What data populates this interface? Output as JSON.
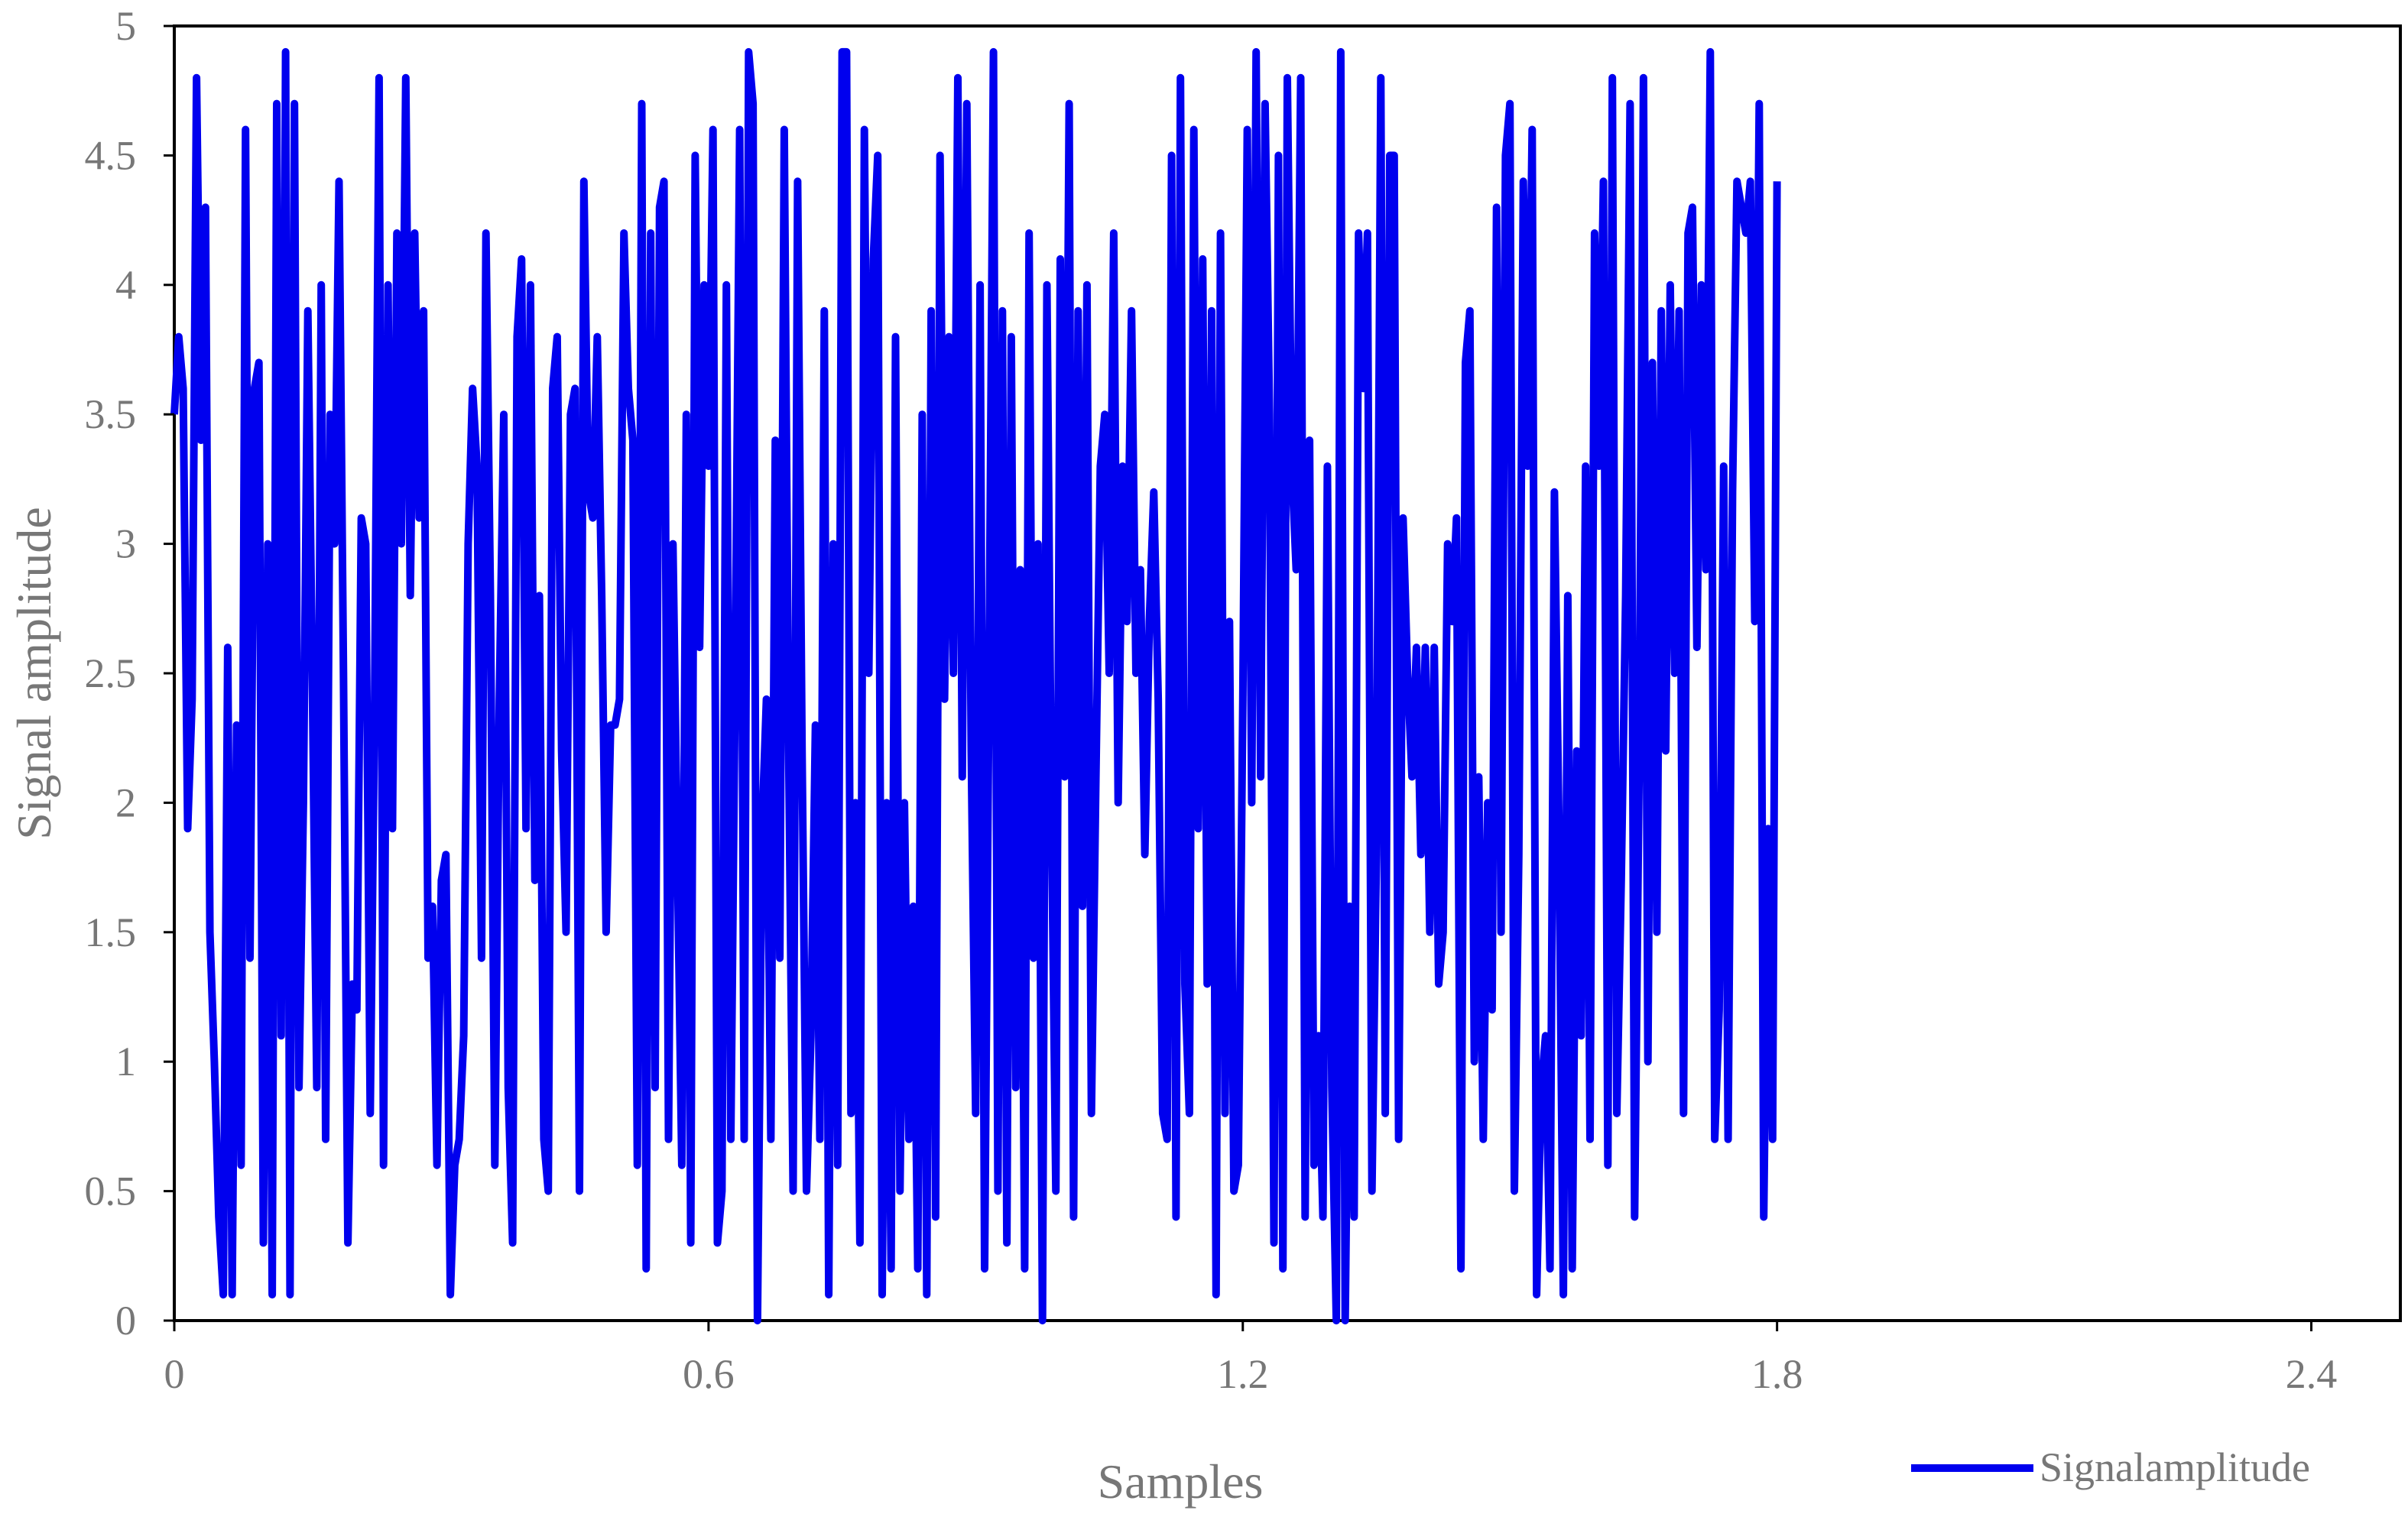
{
  "chart_data": {
    "type": "line",
    "xlabel": "Samples",
    "ylabel": "Signal amplitude",
    "xlim": [
      0,
      2.5
    ],
    "ylim": [
      0,
      5
    ],
    "xticks": [
      "0",
      "0.6",
      "1.2",
      "1.8",
      "2.4"
    ],
    "xtick_values": [
      0,
      0.6,
      1.2,
      1.8,
      2.4
    ],
    "yticks": [
      "0",
      "0.5",
      "1",
      "1.5",
      "2",
      "2.5",
      "3",
      "3.5",
      "4",
      "4.5",
      "5"
    ],
    "ytick_values": [
      0,
      0.5,
      1,
      1.5,
      2,
      2.5,
      3,
      3.5,
      4,
      4.5,
      5
    ],
    "grid": false,
    "legend_position": "bottom-right",
    "series": [
      {
        "name": "Signalamplitude",
        "color": "#0000ee",
        "x_start": 0,
        "x_step": 0.005,
        "values": [
          3.5,
          3.8,
          3.6,
          1.9,
          2.4,
          4.8,
          3.4,
          4.3,
          1.5,
          1.0,
          0.4,
          0.1,
          2.6,
          0.1,
          2.3,
          0.6,
          4.6,
          1.4,
          3.6,
          3.7,
          0.3,
          3.0,
          0.1,
          4.7,
          1.1,
          4.9,
          0.1,
          4.7,
          0.9,
          2.0,
          3.9,
          2.5,
          0.9,
          4.0,
          0.7,
          3.5,
          3.0,
          4.4,
          2.5,
          0.3,
          1.3,
          1.2,
          3.1,
          3.0,
          0.8,
          2.4,
          4.8,
          0.6,
          4.0,
          1.9,
          4.2,
          3.0,
          4.8,
          2.8,
          4.2,
          3.1,
          3.9,
          1.4,
          1.6,
          0.6,
          1.7,
          1.8,
          0.1,
          0.6,
          0.7,
          1.1,
          3.0,
          3.6,
          3.3,
          1.4,
          4.2,
          2.8,
          0.6,
          2.4,
          3.5,
          0.9,
          0.3,
          3.8,
          4.1,
          1.9,
          4.0,
          1.7,
          2.8,
          0.7,
          0.5,
          3.6,
          3.8,
          2.2,
          1.5,
          3.5,
          3.6,
          0.5,
          4.4,
          3.2,
          3.1,
          3.8,
          2.8,
          1.5,
          2.3,
          2.3,
          2.4,
          4.2,
          3.6,
          3.4,
          0.6,
          4.7,
          0.2,
          4.2,
          0.9,
          4.3,
          4.4,
          0.7,
          3.0,
          1.8,
          0.6,
          3.5,
          0.3,
          4.5,
          2.6,
          4.0,
          3.3,
          4.6,
          0.3,
          0.5,
          4.0,
          0.7,
          2.5,
          4.6,
          0.7,
          4.9,
          4.7,
          0.0,
          1.9,
          2.4,
          0.7,
          3.4,
          1.4,
          4.6,
          2.2,
          0.5,
          4.4,
          2.2,
          0.5,
          1.1,
          2.3,
          0.7,
          3.9,
          0.1,
          3.0,
          0.6,
          4.9,
          4.9,
          0.8,
          2.0,
          0.3,
          4.6,
          2.5,
          4.1,
          4.5,
          0.1,
          2.0,
          0.2,
          3.8,
          0.5,
          2.0,
          0.7,
          1.6,
          0.2,
          3.5,
          0.1,
          3.9,
          0.4,
          4.5,
          2.4,
          3.8,
          2.5,
          4.8,
          2.1,
          4.7,
          2.2,
          0.8,
          4.0,
          0.2,
          2.5,
          4.9,
          0.5,
          3.9,
          0.3,
          3.8,
          0.9,
          2.9,
          0.2,
          4.2,
          1.4,
          3.0,
          0.0,
          4.0,
          2.0,
          0.5,
          4.1,
          2.1,
          4.7,
          0.4,
          3.9,
          1.6,
          4.0,
          0.8,
          2.1,
          3.3,
          3.5,
          2.5,
          4.2,
          2.0,
          3.3,
          2.7,
          3.9,
          2.5,
          2.9,
          1.8,
          2.7,
          3.2,
          2.4,
          0.8,
          0.7,
          4.5,
          0.4,
          4.8,
          1.3,
          0.8,
          4.6,
          1.9,
          4.1,
          1.3,
          3.9,
          0.1,
          4.2,
          0.8,
          2.7,
          0.5,
          0.6,
          2.4,
          4.6,
          2.0,
          4.9,
          2.1,
          4.7,
          3.5,
          0.3,
          4.5,
          0.2,
          4.8,
          3.3,
          2.9,
          4.8,
          0.4,
          3.4,
          0.6,
          1.1,
          0.4,
          3.3,
          0.9,
          0.0,
          4.9,
          0.0,
          1.6,
          0.4,
          4.2,
          3.6,
          4.2,
          0.5,
          1.8,
          4.8,
          0.8,
          4.5,
          4.5,
          0.7,
          3.1,
          2.5,
          2.1,
          2.6,
          1.8,
          2.6,
          1.5,
          2.6,
          1.3,
          1.5,
          3.0,
          2.7,
          3.1,
          0.2,
          3.7,
          3.9,
          1.0,
          2.1,
          0.7,
          2.0,
          1.2,
          4.3,
          1.5,
          4.5,
          4.7,
          0.5,
          1.8,
          4.4,
          3.3,
          4.6,
          0.1,
          0.9,
          1.1,
          0.2,
          3.2,
          1.9,
          0.1,
          2.8,
          0.2,
          2.2,
          1.1,
          3.3,
          0.7,
          4.2,
          3.3,
          4.4,
          0.6,
          4.8,
          0.8,
          1.7,
          2.8,
          4.7,
          0.4,
          2.1,
          4.8,
          1.0,
          3.7,
          1.5,
          3.9,
          2.2,
          4.0,
          2.5,
          3.9,
          0.8,
          4.2,
          4.3,
          2.6,
          4.0,
          2.9,
          4.9,
          0.7,
          1.2,
          3.3,
          0.7,
          3.2,
          4.4,
          4.3,
          4.2,
          4.4,
          2.7,
          4.7,
          0.4,
          1.9,
          0.7,
          4.4
        ]
      }
    ]
  }
}
